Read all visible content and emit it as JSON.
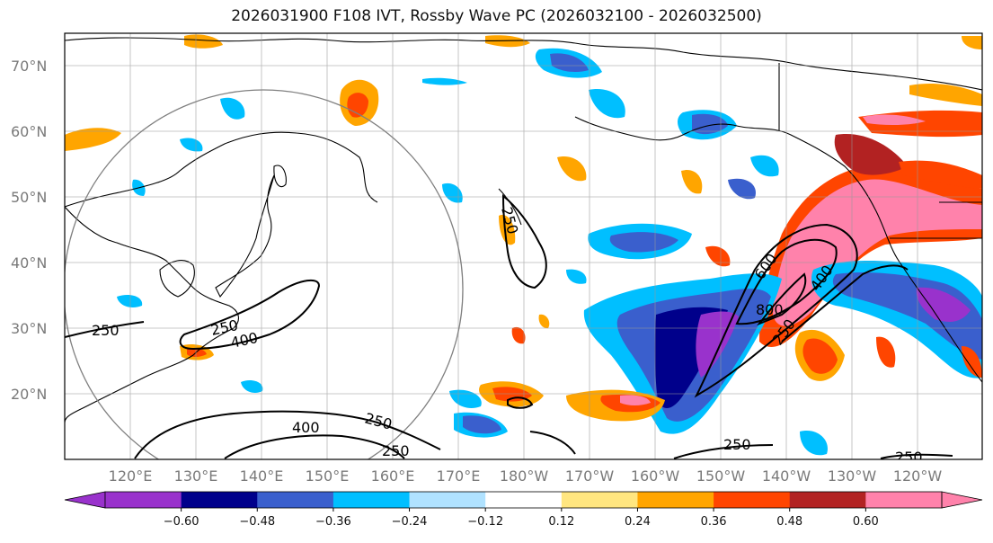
{
  "title": "2026031900 F108 IVT, Rossby Wave PC (2026032100 - 2026032500)",
  "lat_labels": [
    "70°N",
    "60°N",
    "50°N",
    "40°N",
    "30°N",
    "20°N"
  ],
  "lon_labels": [
    "120°E",
    "130°E",
    "140°E",
    "150°E",
    "160°E",
    "170°E",
    "180°W",
    "170°W",
    "160°W",
    "150°W",
    "140°W",
    "130°W",
    "120°W"
  ],
  "colorbar": {
    "ticks": [
      "−0.60",
      "−0.48",
      "−0.36",
      "−0.24",
      "−0.12",
      "0.12",
      "0.24",
      "0.36",
      "0.48",
      "0.60"
    ],
    "colors": [
      "#9932cc",
      "#00008b",
      "#3a5fcd",
      "#00bfff",
      "#b0e2ff",
      "#ffffff",
      "#ffe680",
      "#ffa500",
      "#ff4500",
      "#b22222",
      "#ff82ab"
    ]
  },
  "contour_labels": [
    "250",
    "250",
    "400",
    "250",
    "400",
    "250",
    "250",
    "600",
    "800",
    "400",
    "250",
    "250",
    "250"
  ]
}
